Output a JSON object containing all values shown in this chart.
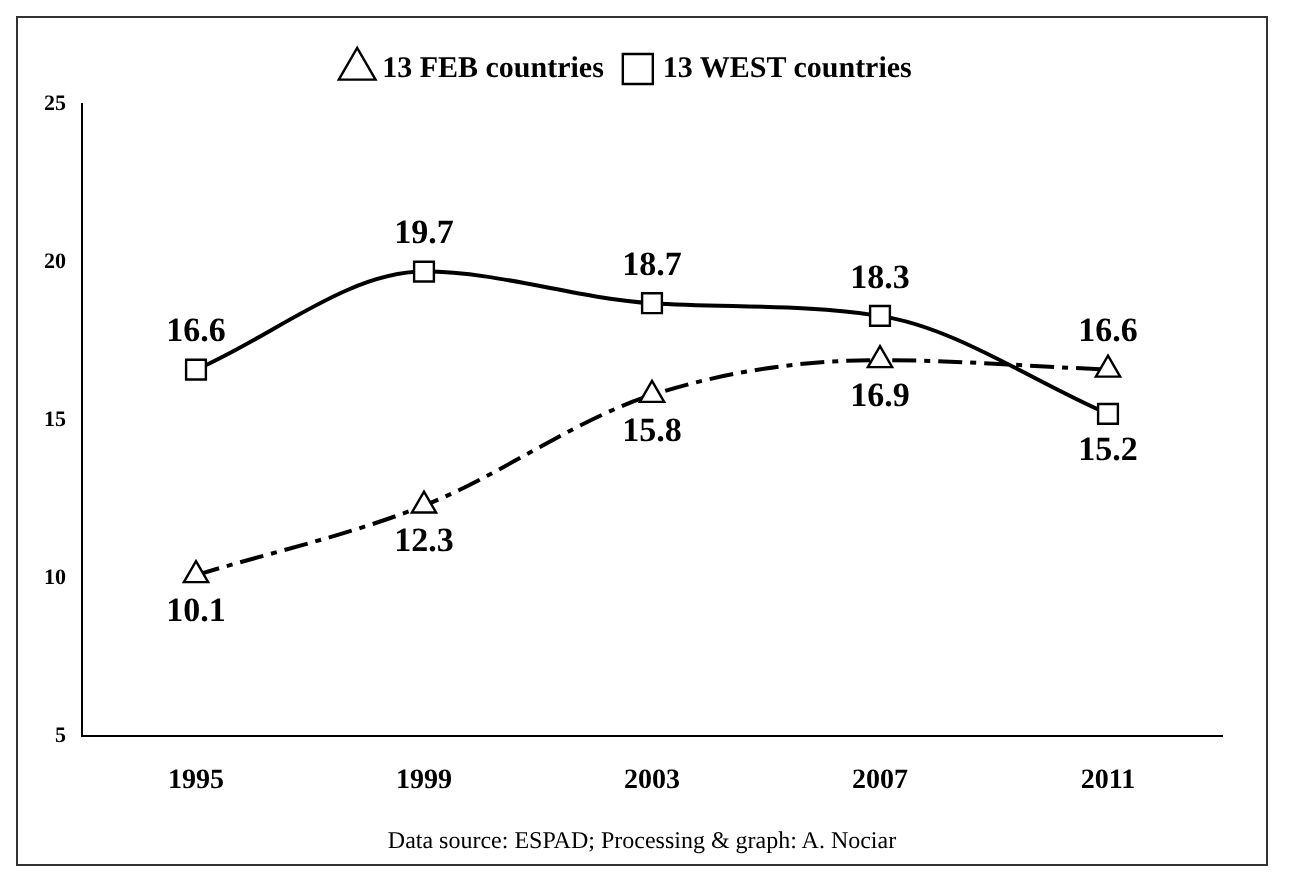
{
  "chart_data": {
    "type": "line",
    "categories": [
      "1995",
      "1999",
      "2003",
      "2007",
      "2011"
    ],
    "series": [
      {
        "name": "13 FEB countries",
        "color": "#000000",
        "values": [
          10.1,
          12.3,
          15.8,
          16.9,
          16.6
        ],
        "marker": "triangle",
        "line_style": "dashed"
      },
      {
        "name": "13 WEST countries",
        "color": "#000000",
        "values": [
          16.6,
          19.7,
          18.7,
          18.3,
          15.2
        ],
        "marker": "square",
        "line_style": "solid"
      }
    ],
    "ylim": [
      5,
      25
    ],
    "yticks": [
      5,
      10,
      15,
      20,
      25
    ],
    "grid": false,
    "legend": "top",
    "data_labels": true,
    "annotations": [
      "Data source: ESPAD; Processing & graph: A. Nociar"
    ]
  }
}
